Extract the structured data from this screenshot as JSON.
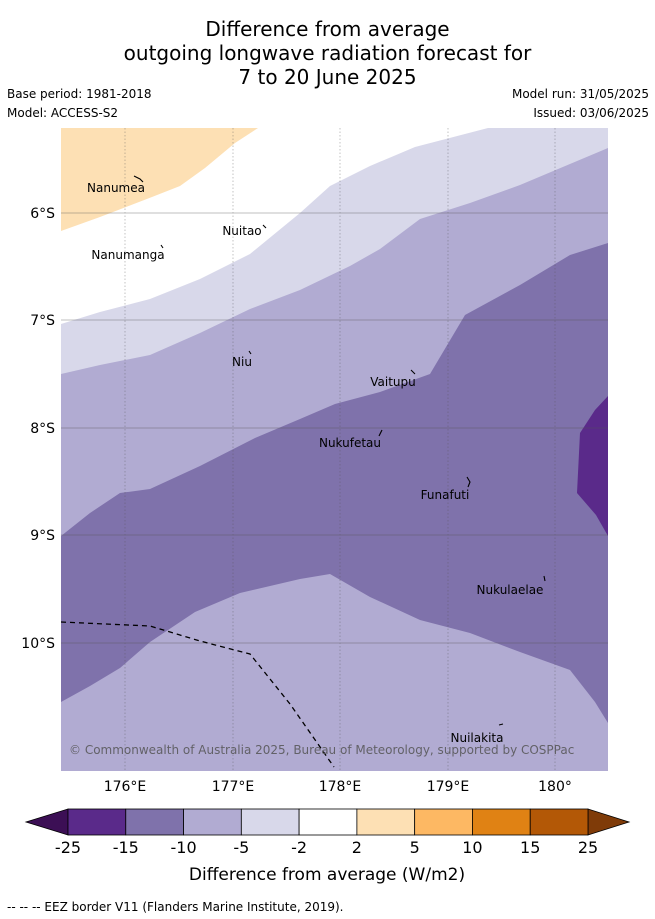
{
  "title": {
    "line1": "Difference from average",
    "line2": "outgoing longwave radiation forecast for",
    "line3": "7 to 20 June 2025"
  },
  "meta": {
    "base_period": "Base period: 1981-2018",
    "model": "Model: ACCESS-S2",
    "model_run": "Model run: 31/05/2025",
    "issued": "Issued: 03/06/2025"
  },
  "map": {
    "lat_labels": [
      "6°S",
      "7°S",
      "8°S",
      "9°S",
      "10°S"
    ],
    "lon_labels": [
      "176°E",
      "177°E",
      "178°E",
      "179°E",
      "180°"
    ],
    "places": [
      "Nanumea",
      "Nuitao",
      "Nanumanga",
      "Niu",
      "Vaitupu",
      "Nukufetau",
      "Funafuti",
      "Nukulaelae",
      "Nuilakita"
    ],
    "copyright": "© Commonwealth of Australia 2025, Bureau of Meteorology, supported by COSPPac",
    "fill_colors": {
      "minus25_minus15": "#5a2a8a",
      "minus15_minus10": "#7f72ab",
      "minus10_minus5": "#b1abd2",
      "minus5_minus2": "#d8d8ea",
      "minus2_2": "#ffffff",
      "2_5": "#fde0b4"
    }
  },
  "colorbar": {
    "ticks": [
      "-25",
      "-15",
      "-10",
      "-5",
      "-2",
      "2",
      "5",
      "10",
      "15",
      "25"
    ],
    "colors": [
      "#5a2a8a",
      "#7f72ab",
      "#b1abd2",
      "#d8d8ea",
      "#ffffff",
      "#fde0b4",
      "#fdb863",
      "#e08214",
      "#b35806"
    ],
    "under_color": "#3c0f55",
    "over_color": "#7f3b08",
    "label": "Difference from average (W/m2)"
  },
  "footer": "-- -- -- EEZ border V11 (Flanders Marine Institute, 2019)."
}
